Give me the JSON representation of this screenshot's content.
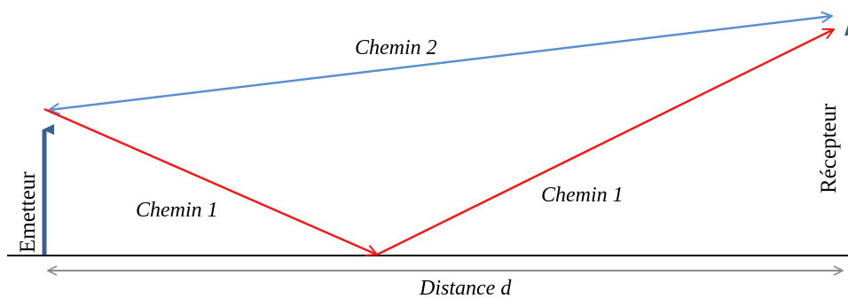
{
  "labels": {
    "path2": "Chemin 2",
    "path1_left": "Chemin 1",
    "path1_right": "Chemin 1",
    "transmitter": "Emetteur",
    "receiver": "Récepteur",
    "distance": "Distance d"
  },
  "colors": {
    "ground": "#000000",
    "antenna": "#3b5f8f",
    "direct_path": "#5b8fd0",
    "reflected_path": "#ee1c1c",
    "distance_arrow": "#8c8c8c"
  }
}
